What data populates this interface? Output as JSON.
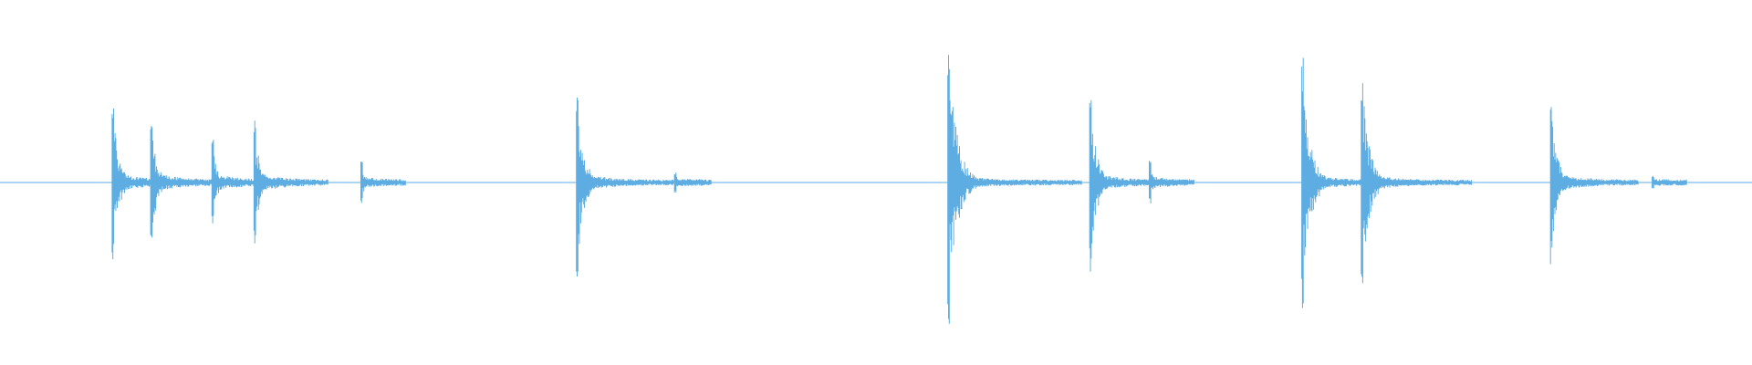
{
  "chart_data": {
    "type": "waveform",
    "title": "",
    "xlabel": "",
    "ylabel": "",
    "grid": false,
    "axes_visible": false,
    "amplitude_range": [
      -1,
      1
    ],
    "color": "#5dade2",
    "background": "#ffffff",
    "events": [
      {
        "onset_percent": 6.4,
        "peak_amplitude": 0.45
      },
      {
        "onset_percent": 8.6,
        "peak_amplitude": 0.38
      },
      {
        "onset_percent": 12.1,
        "peak_amplitude": 0.24
      },
      {
        "onset_percent": 14.5,
        "peak_amplitude": 0.34
      },
      {
        "onset_percent": 20.6,
        "peak_amplitude": 0.12
      },
      {
        "onset_percent": 32.9,
        "peak_amplitude": 0.52
      },
      {
        "onset_percent": 38.5,
        "peak_amplitude": 0.06
      },
      {
        "onset_percent": 54.1,
        "peak_amplitude": 0.8
      },
      {
        "onset_percent": 62.2,
        "peak_amplitude": 0.49
      },
      {
        "onset_percent": 65.6,
        "peak_amplitude": 0.12
      },
      {
        "onset_percent": 74.3,
        "peak_amplitude": 0.69
      },
      {
        "onset_percent": 77.7,
        "peak_amplitude": 0.62
      },
      {
        "onset_percent": 88.5,
        "peak_amplitude": 0.45
      },
      {
        "onset_percent": 94.3,
        "peak_amplitude": 0.04
      }
    ]
  }
}
